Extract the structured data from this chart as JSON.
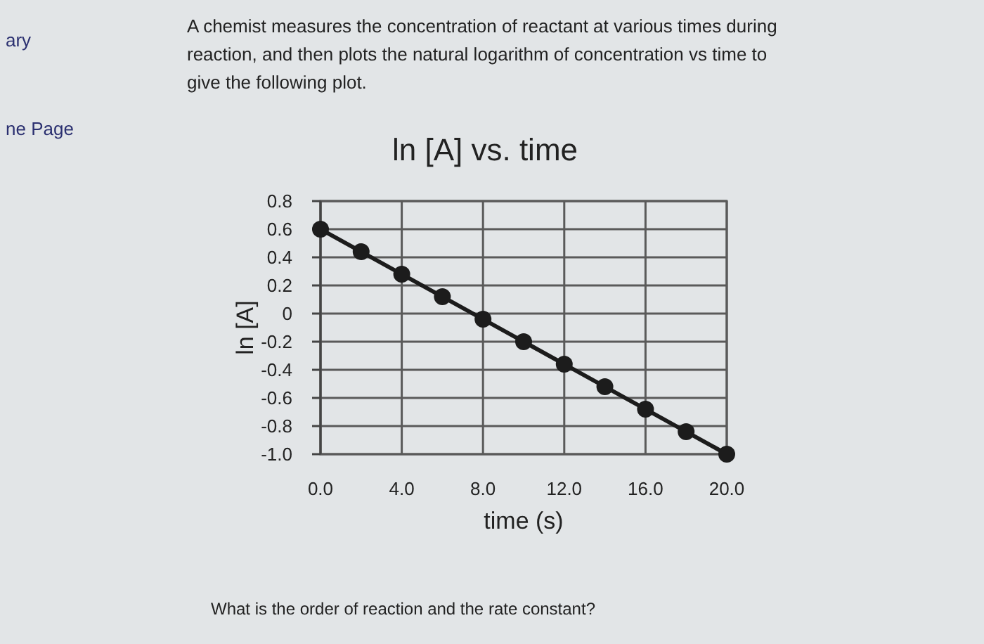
{
  "chart_data": {
    "type": "line",
    "title": "ln [A] vs. time",
    "subtitle": "A chemist measures the concentration of reactant at various times during reaction, and then plots the natural logarithm of concentration vs time to give the following plot.",
    "xlabel": "time (s)",
    "ylabel": "ln [A]",
    "x": [
      0,
      2,
      4,
      6,
      8,
      10,
      12,
      14,
      16,
      18,
      20
    ],
    "series": [
      {
        "color": "#1c1c1c",
        "values": [
          0.6,
          0.44,
          0.28,
          0.12,
          -0.04,
          -0.2,
          -0.36,
          -0.52,
          -0.68,
          -0.84,
          -1.0
        ]
      }
    ],
    "marker": "circle",
    "xlim": [
      0,
      20
    ],
    "ylim": [
      -1.0,
      0.8
    ],
    "xticks": [
      {
        "value": 0,
        "label": "0.0"
      },
      {
        "value": 4,
        "label": "4.0"
      },
      {
        "value": 8,
        "label": "8.0"
      },
      {
        "value": 12,
        "label": "12.0"
      },
      {
        "value": 16,
        "label": "16.0"
      },
      {
        "value": 20,
        "label": "20.0"
      }
    ],
    "yticks": [
      0.8,
      0.6,
      0.4,
      0.2,
      0,
      -0.2,
      -0.4,
      -0.6,
      -0.8,
      {
        "value": -1,
        "label": "-1.0"
      }
    ],
    "grid": true,
    "annotations": [
      "ary",
      "ne Page",
      "What is the order of reaction and the rate constant?"
    ]
  }
}
